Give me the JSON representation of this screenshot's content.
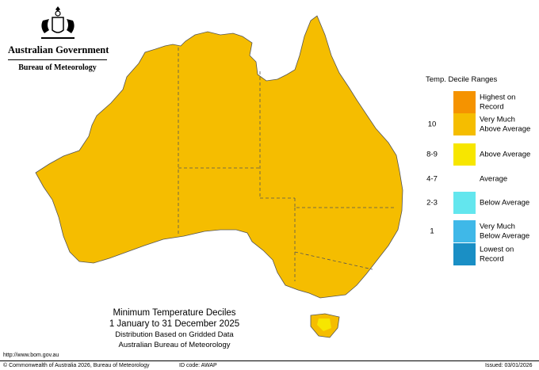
{
  "header": {
    "government": "Australian Government",
    "bureau": "Bureau of Meteorology"
  },
  "map": {
    "colors": {
      "average": "#ffffff",
      "above_average": "#f7e600",
      "very_much_above": "#f5bd00",
      "highest_on_record": "#f59300",
      "below_average": "#63e6ee",
      "very_much_below": "#3fb8e8",
      "lowest_on_record": "#1a8fc5",
      "coast": "#555555",
      "state_border": "#555555"
    }
  },
  "legend": {
    "title": "Temp. Decile Ranges",
    "items": [
      {
        "code": "",
        "label_lines": [
          "Highest on",
          "Record"
        ],
        "color": "#f59300"
      },
      {
        "code": "10",
        "label_lines": [
          "Very Much",
          "Above Average"
        ],
        "color": "#f5bd00"
      },
      {
        "code": "8-9",
        "label_lines": [
          "Above Average"
        ],
        "color": "#f7e600"
      },
      {
        "code": "4-7",
        "label_lines": [
          "Average"
        ],
        "color": "#ffffff"
      },
      {
        "code": "2-3",
        "label_lines": [
          "Below Average"
        ],
        "color": "#63e6ee"
      },
      {
        "code": "1",
        "label_lines": [
          "Very Much",
          "Below Average"
        ],
        "color": "#3fb8e8"
      },
      {
        "code": "",
        "label_lines": [
          "Lowest on",
          "Record"
        ],
        "color": "#1a8fc5"
      }
    ]
  },
  "caption": {
    "title_line1": "Minimum Temperature Deciles",
    "title_line2": "1 January to 31 December 2025",
    "sub_line1": "Distribution Based on Gridded Data",
    "sub_line2": "Australian Bureau of Meteorology"
  },
  "footer": {
    "url": "http://www.bom.gov.au",
    "copyright": "© Commonwealth of Australia 2026, Bureau of Meteorology",
    "id_code": "ID code: AWAP",
    "issued": "Issued: 03/01/2026"
  }
}
